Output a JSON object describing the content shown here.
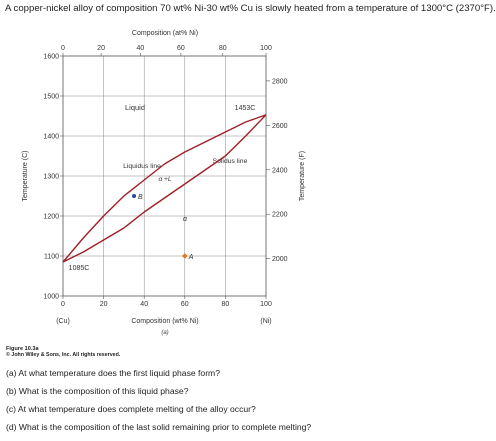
{
  "prompt": "A copper-nickel alloy of composition 70 wt% Ni-30 wt% Cu is slowly heated from a temperature of 1300°C (2370°F).",
  "figure": {
    "top_axis_label": "Composition (at% Ni)",
    "bottom_axis_label": "Composition (wt% Ni)",
    "left_axis_label": "Temperature (C)",
    "right_axis_label": "Temperature (F)",
    "left_end_label": "(Cu)",
    "right_end_label": "(Ni)",
    "panel_label": "(a)",
    "bottom_ticks": [
      "0",
      "20",
      "40",
      "60",
      "80",
      "100"
    ],
    "top_ticks": [
      "0",
      "20",
      "40",
      "60",
      "80",
      "100"
    ],
    "left_ticks": [
      "1600",
      "1500",
      "1400",
      "1300",
      "1200",
      "1100",
      "1000"
    ],
    "right_ticks": [
      "2800",
      "2600",
      "2400",
      "2200",
      "2000"
    ],
    "region_liquid": "Liquid",
    "region_two_phase": "α +L",
    "region_alpha": "α",
    "liquidus_label": "Liquidus line",
    "solidus_label": "Solidus line",
    "ni_melting_label": "1453C",
    "cu_melting_label": "1085C",
    "point_b_label": "B",
    "point_a_label": "A",
    "line_color": "#a01f28",
    "point_b_color": "#1f4e9c",
    "point_a_color": "#e07b1c",
    "figure_label": "Figure 10.3a",
    "copyright": "© John Wiley & Sons, Inc. All rights reserved."
  },
  "chart_data": {
    "type": "line",
    "xlabel": "Composition (wt% Ni)",
    "ylabel": "Temperature (C)",
    "xlim": [
      0,
      100
    ],
    "ylim": [
      1000,
      1600
    ],
    "series": [
      {
        "name": "Liquidus line",
        "x": [
          0,
          10,
          20,
          30,
          40,
          50,
          60,
          70,
          80,
          90,
          100
        ],
        "y": [
          1085,
          1145,
          1200,
          1250,
          1290,
          1330,
          1360,
          1385,
          1410,
          1435,
          1453
        ]
      },
      {
        "name": "Solidus line",
        "x": [
          0,
          10,
          20,
          30,
          40,
          50,
          60,
          70,
          80,
          90,
          100
        ],
        "y": [
          1085,
          1110,
          1140,
          1170,
          1210,
          1245,
          1280,
          1315,
          1350,
          1400,
          1453
        ]
      }
    ],
    "points": [
      {
        "label": "B",
        "x": 35,
        "y": 1250
      },
      {
        "label": "A",
        "x": 60,
        "y": 1100
      }
    ]
  },
  "questions": [
    "(a) At what temperature does the first liquid phase form?",
    "(b) What is the composition of this liquid phase?",
    "(c) At what temperature does complete melting of the alloy occur?",
    "(d) What is the composition of the last solid remaining prior to complete melting?"
  ]
}
